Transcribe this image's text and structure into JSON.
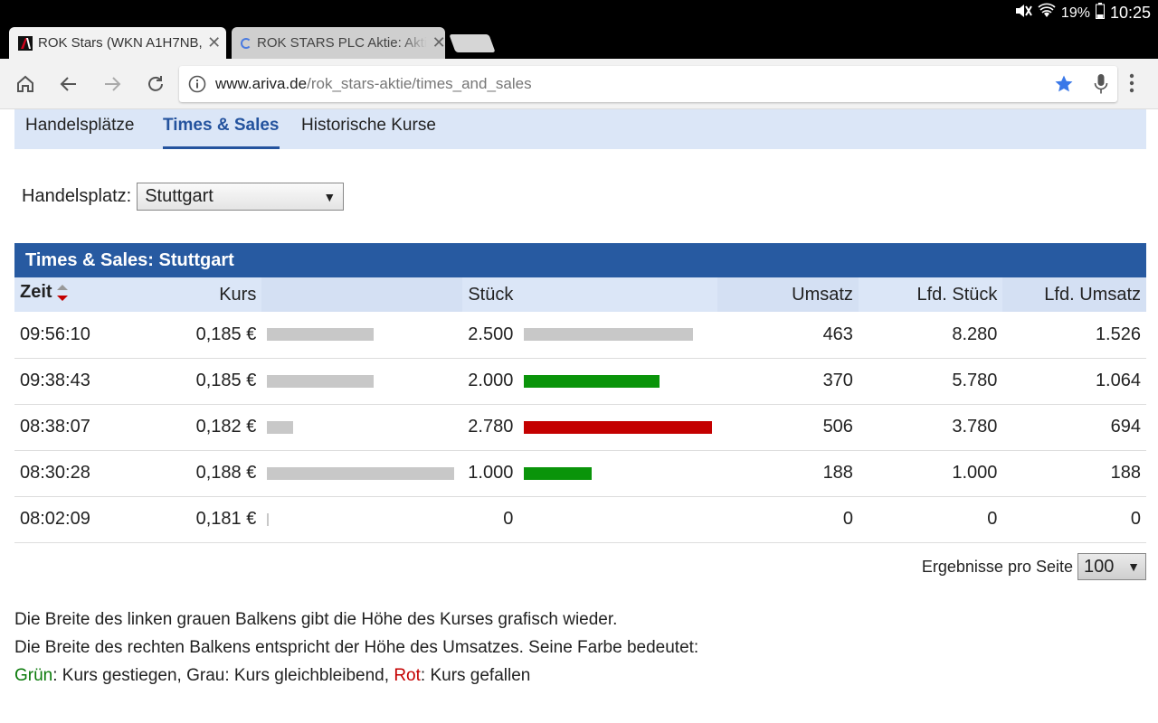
{
  "status_bar": {
    "battery_percent": "19%",
    "time": "10:25"
  },
  "tabs": [
    {
      "title": "ROK Stars (WKN A1H7NB,",
      "active": true
    },
    {
      "title": "ROK STARS PLC Aktie: Akti",
      "active": false
    }
  ],
  "toolbar": {
    "url_host": "www.ariva.de",
    "url_path": "/rok_stars-aktie/times_and_sales"
  },
  "subnav": {
    "items": [
      "Handelsplätze",
      "Times & Sales",
      "Historische Kurse"
    ],
    "active_index": 1
  },
  "exchange": {
    "label": "Handelsplatz:",
    "value": "Stuttgart"
  },
  "panel": {
    "title": "Times & Sales: Stuttgart"
  },
  "table": {
    "headers": {
      "zeit": "Zeit",
      "kurs": "Kurs",
      "stueck": "Stück",
      "umsatz": "Umsatz",
      "lfd_stueck": "Lfd. Stück",
      "lfd_umsatz": "Lfd. Umsatz"
    },
    "rows": [
      {
        "zeit": "09:56:10",
        "kurs": "0,185 €",
        "kurs_bar": 0.57,
        "stueck": "2.500",
        "stueck_bar": 0.9,
        "trend": "grey",
        "umsatz": "463",
        "lfd_stueck": "8.280",
        "lfd_umsatz": "1.526"
      },
      {
        "zeit": "09:38:43",
        "kurs": "0,185 €",
        "kurs_bar": 0.57,
        "stueck": "2.000",
        "stueck_bar": 0.72,
        "trend": "green",
        "umsatz": "370",
        "lfd_stueck": "5.780",
        "lfd_umsatz": "1.064"
      },
      {
        "zeit": "08:38:07",
        "kurs": "0,182 €",
        "kurs_bar": 0.14,
        "stueck": "2.780",
        "stueck_bar": 1.0,
        "trend": "red",
        "umsatz": "506",
        "lfd_stueck": "3.780",
        "lfd_umsatz": "694"
      },
      {
        "zeit": "08:30:28",
        "kurs": "0,188 €",
        "kurs_bar": 1.0,
        "stueck": "1.000",
        "stueck_bar": 0.36,
        "trend": "green",
        "umsatz": "188",
        "lfd_stueck": "1.000",
        "lfd_umsatz": "188"
      },
      {
        "zeit": "08:02:09",
        "kurs": "0,181 €",
        "kurs_bar": 0.0,
        "stueck": "0",
        "stueck_bar": 0.0,
        "trend": "none",
        "umsatz": "0",
        "lfd_stueck": "0",
        "lfd_umsatz": "0"
      }
    ]
  },
  "pager": {
    "label": "Ergebnisse pro Seite",
    "value": "100"
  },
  "legend": {
    "line1": "Die Breite des linken grauen Balkens gibt die Höhe des Kurses grafisch wieder.",
    "line2": "Die Breite des rechten Balkens entspricht der Höhe des Umsatzes. Seine Farbe bedeutet:",
    "green_word": "Grün",
    "green_text": ": Kurs gestiegen, Grau: Kurs gleichbleibend, ",
    "red_word": "Rot",
    "red_text": ": Kurs gefallen"
  },
  "colors": {
    "brand_blue": "#275aa1",
    "nav_bg": "#dbe6f7",
    "bar_grey": "#c8c8c8",
    "bar_green": "#0a940a",
    "bar_red": "#c40000"
  },
  "icons": [
    "mute-icon",
    "wifi-icon",
    "battery-icon",
    "home-icon",
    "back-icon",
    "forward-icon",
    "reload-icon",
    "info-icon",
    "star-icon",
    "mic-icon",
    "menu-icon",
    "sort-icon"
  ]
}
